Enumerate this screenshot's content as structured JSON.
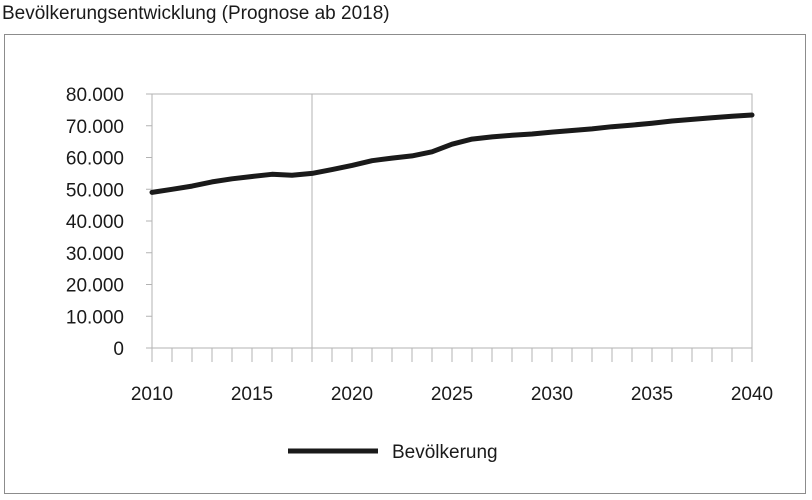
{
  "chart_data": {
    "type": "line",
    "title": "Bevölkerungsentwicklung (Prognose ab 2018)",
    "xlabel": "",
    "ylabel": "",
    "xlim": [
      2010,
      2040
    ],
    "ylim": [
      0,
      80000
    ],
    "x_ticks": [
      "2010",
      "2015",
      "2020",
      "2025",
      "2030",
      "2035",
      "2040"
    ],
    "y_ticks": [
      "0",
      "10.000",
      "20.000",
      "30.000",
      "40.000",
      "50.000",
      "60.000",
      "70.000",
      "80.000"
    ],
    "grid": "vertical line at 2018",
    "marker_line_x": 2018,
    "legend_position": "bottom",
    "series": [
      {
        "name": "Bevölkerung",
        "color": "#1a1a1a",
        "x": [
          2010,
          2011,
          2012,
          2013,
          2014,
          2015,
          2016,
          2017,
          2018,
          2019,
          2020,
          2021,
          2022,
          2023,
          2024,
          2025,
          2026,
          2027,
          2028,
          2029,
          2030,
          2031,
          2032,
          2033,
          2034,
          2035,
          2036,
          2037,
          2038,
          2039,
          2040
        ],
        "values": [
          49000,
          50000,
          51000,
          52300,
          53300,
          54000,
          54700,
          54400,
          55000,
          56200,
          57500,
          59000,
          59800,
          60500,
          61800,
          64200,
          65800,
          66500,
          67000,
          67400,
          68000,
          68500,
          69000,
          69700,
          70200,
          70800,
          71500,
          72000,
          72500,
          73000,
          73400
        ]
      }
    ]
  }
}
